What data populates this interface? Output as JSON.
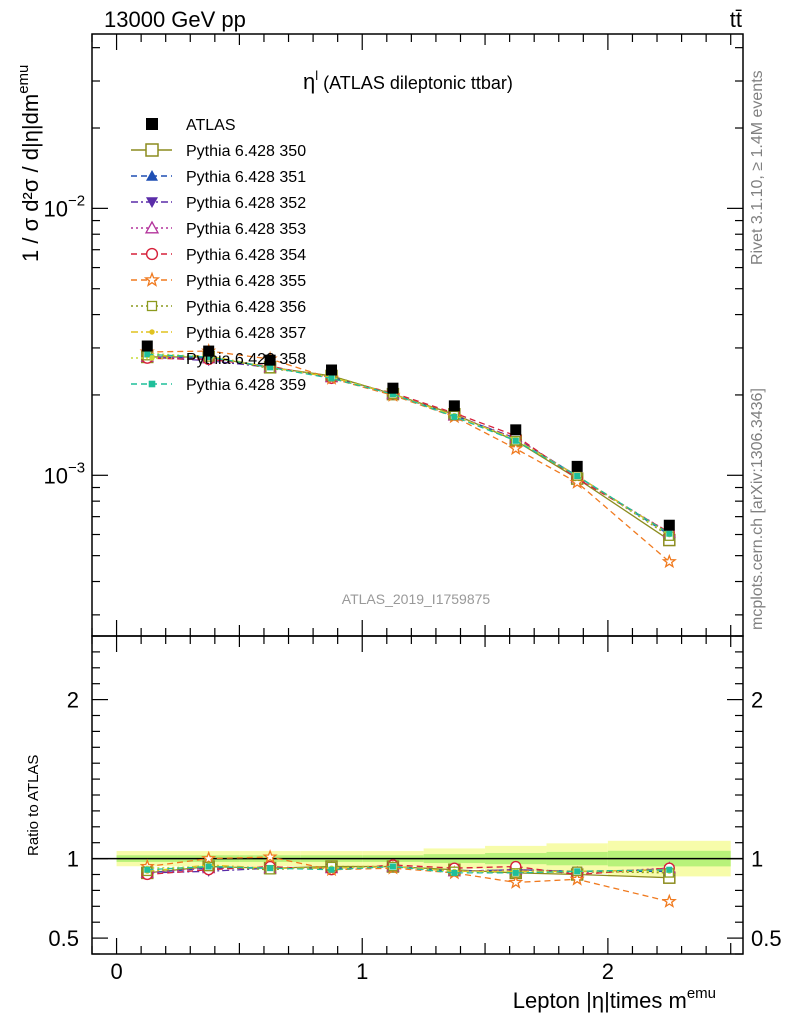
{
  "header": {
    "energy_label": "13000 GeV pp",
    "process_label": "tt̄"
  },
  "side": {
    "rivet": "Rivet 3.1.10, ≥ 1.4M events",
    "mcplots": "mcplots.cern.ch [arXiv:1306.3436]"
  },
  "chart_data": {
    "type": "line",
    "title": "η",
    "title_superscript": "l",
    "title_suffix": "(ATLAS dileptonic ttbar)",
    "analysis_tag": "ATLAS_2019_I1759875",
    "xlabel": "Lepton |η|times m",
    "xlabel_superscript": "emu",
    "ylabel": "1 / σ d²σ / d|η|dm",
    "ylabel_superscript": "emu",
    "ratio_ylabel": "Ratio to ATLAS",
    "xlim": [
      -0.1,
      2.55
    ],
    "ylim": [
      0.00025,
      0.045
    ],
    "yscale": "log",
    "ratio_ylim": [
      0.4,
      2.4
    ],
    "x_ticks": [
      "0",
      "1",
      "2"
    ],
    "x_tick_values": [
      0,
      1,
      2
    ],
    "y_ticks": [
      "10",
      "10"
    ],
    "y_tick_exponents": [
      "−3",
      "−2"
    ],
    "y_tick_values": [
      0.001,
      0.01
    ],
    "ratio_ticks": [
      "0.5",
      "1",
      "2"
    ],
    "ratio_tick_values": [
      0.5,
      1,
      2
    ],
    "x": [
      0.125,
      0.375,
      0.625,
      0.875,
      1.125,
      1.375,
      1.625,
      1.875,
      2.25
    ],
    "x_edges": [
      0,
      0.25,
      0.5,
      0.75,
      1,
      1.25,
      1.5,
      1.75,
      2,
      2.5
    ],
    "data": {
      "name": "ATLAS",
      "values": [
        0.00305,
        0.00292,
        0.0027,
        0.00248,
        0.00212,
        0.00182,
        0.00148,
        0.00108,
        0.00065
      ],
      "band_rel": [
        0.03,
        0.03,
        0.03,
        0.03,
        0.03,
        0.04,
        0.05,
        0.06,
        0.07
      ]
    },
    "series": [
      {
        "name": "Pythia 6.428 350",
        "color": "#8c8c1f",
        "marker": "square-open",
        "dash": "solid",
        "ratio": [
          0.91,
          0.95,
          0.94,
          0.95,
          0.95,
          0.93,
          0.91,
          0.9,
          0.88
        ]
      },
      {
        "name": "Pythia 6.428 351",
        "color": "#1f4fb4",
        "marker": "triangle-up",
        "dash": "dashed",
        "ratio": [
          0.91,
          0.94,
          0.94,
          0.94,
          0.95,
          0.92,
          0.93,
          0.92,
          0.92
        ]
      },
      {
        "name": "Pythia 6.428 352",
        "color": "#5a2ca8",
        "marker": "triangle-down",
        "dash": "dashdot",
        "ratio": [
          0.91,
          0.92,
          0.94,
          0.94,
          0.95,
          0.92,
          0.93,
          0.92,
          0.93
        ]
      },
      {
        "name": "Pythia 6.428 353",
        "color": "#b3339b",
        "marker": "triangle-up-open",
        "dash": "dotted",
        "ratio": [
          0.91,
          0.94,
          0.94,
          0.94,
          0.95,
          0.92,
          0.93,
          0.91,
          0.94
        ]
      },
      {
        "name": "Pythia 6.428 354",
        "color": "#d6203a",
        "marker": "circle-open",
        "dash": "dashed",
        "ratio": [
          0.9,
          0.93,
          0.95,
          0.93,
          0.96,
          0.94,
          0.95,
          0.9,
          0.94
        ]
      },
      {
        "name": "Pythia 6.428 355",
        "color": "#f07a1f",
        "marker": "star-open",
        "dash": "dashed",
        "ratio": [
          0.95,
          1.0,
          1.01,
          0.93,
          0.94,
          0.91,
          0.85,
          0.87,
          0.73
        ]
      },
      {
        "name": "Pythia 6.428 356",
        "color": "#8c9a1f",
        "marker": "square-open-small",
        "dash": "dotted",
        "ratio": [
          0.92,
          0.95,
          0.93,
          0.95,
          0.95,
          0.92,
          0.91,
          0.92,
          0.91
        ]
      },
      {
        "name": "Pythia 6.428 357",
        "color": "#e0c21f",
        "marker": "dot",
        "dash": "dashdot",
        "ratio": [
          0.92,
          0.96,
          0.94,
          0.94,
          0.95,
          0.92,
          0.92,
          0.92,
          0.93
        ]
      },
      {
        "name": "Pythia 6.428 358",
        "color": "#c7dc35",
        "marker": "dot",
        "dash": "dotted",
        "ratio": [
          0.94,
          0.95,
          0.94,
          0.94,
          0.95,
          0.92,
          0.92,
          0.92,
          0.92
        ]
      },
      {
        "name": "Pythia 6.428 359",
        "color": "#1fbf9a",
        "marker": "square-small",
        "dash": "dashed",
        "ratio": [
          0.93,
          0.95,
          0.94,
          0.93,
          0.95,
          0.91,
          0.91,
          0.92,
          0.93
        ]
      }
    ]
  }
}
